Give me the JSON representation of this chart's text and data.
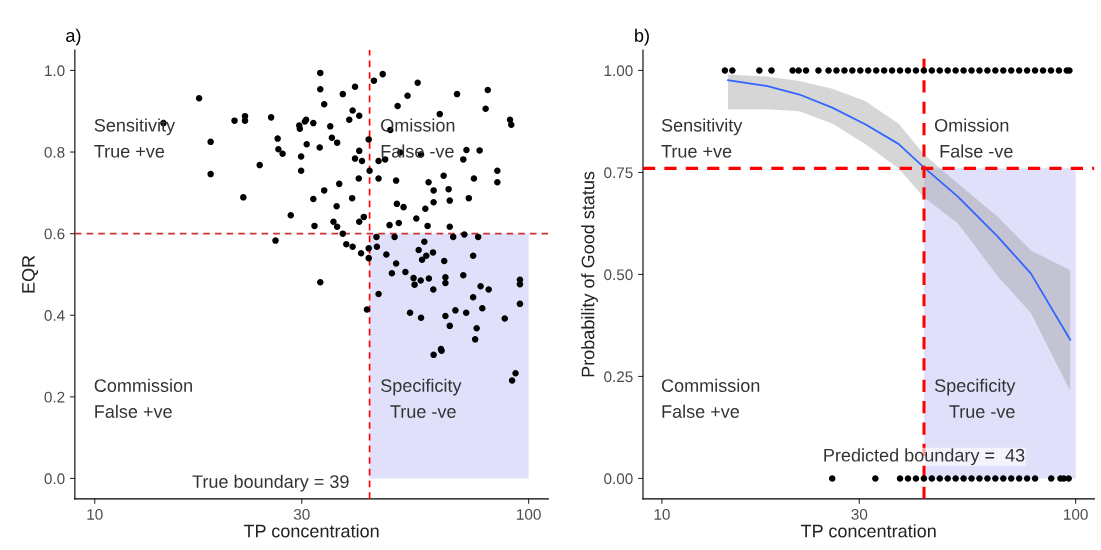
{
  "chart_data": [
    {
      "type": "scatter",
      "title": "a)",
      "xlabel": "TP concentration",
      "ylabel": "EQR",
      "log": "x",
      "marker": "circle",
      "xlim": [
        9,
        111
      ],
      "ylim": [
        -0.05,
        1.05
      ],
      "xticks": [
        10,
        30,
        100
      ],
      "yticks": [
        {
          "value": 0,
          "label": "0.0"
        },
        {
          "value": 0.2,
          "label": "0.2"
        },
        {
          "value": 0.4,
          "label": "0.4"
        },
        {
          "value": 0.6,
          "label": "0.6"
        },
        {
          "value": 0.8,
          "label": "0.8"
        },
        {
          "value": 1,
          "label": "1.0"
        }
      ],
      "ref_lines": [
        {
          "axis": "x",
          "value": 43,
          "label": null,
          "color": "#ff0000",
          "line_style": "dashed"
        },
        {
          "axis": "y",
          "value": 0.6,
          "label": null,
          "color": "#cc3333",
          "line_style": "dashed"
        }
      ],
      "bands": [
        {
          "axis": "x",
          "from": 43,
          "to": 100,
          "color": "#e0e0fa"
        }
      ],
      "annotations": [
        "Sensitivity\nTrue +ve",
        "Omission\nFalse -ve",
        "Commission\nFalse +ve",
        "Specificity\n  True -ve",
        "True boundary = 39"
      ],
      "series": [
        {
          "color": "#000000",
          "x": [
            14.4,
            17.4,
            18.5,
            18.5,
            21.0,
            22.2,
            22.2,
            22.0,
            24.0,
            25.5,
            26.4,
            26.5,
            27.1,
            26.1,
            28.3,
            29.6,
            29.7,
            30.7,
            30.8,
            29.9,
            29.9,
            33.1,
            33.1,
            33.8,
            37.3,
            39.8,
            39.3,
            40.7,
            38.6,
            44.0,
            46.1,
            55.5,
            52.6,
            49.9,
            62.4,
            68.4,
            80.5,
            79.6,
            90.6,
            91.2,
            30.5,
            31.9,
            34.9,
            35.2,
            36.2,
            33.0,
            42.8,
            40.7,
            39.8,
            41.3,
            48.0,
            50.6,
            56.5,
            45.1,
            46.7,
            43.0,
            45.1,
            49.5,
            40.6,
            36.6,
            71.9,
            77.1,
            70.7,
            84.7,
            84.7,
            74.8,
            63.7,
            58.8,
            60.4,
            65.4,
            65.8,
            72.8,
            60.4,
            57.8,
            49.7,
            51.5,
            55.1,
            39.2,
            36.1,
            33.8,
            31.9,
            41.7,
            40.7,
            35.5,
            32.1,
            36.2,
            37.3,
            47.8,
            50.2,
            58.5,
            65.8,
            67.0,
            71.1,
            76.5,
            44.6,
            49.1,
            38.0,
            39.3,
            41.1,
            42.8,
            42.8,
            44.7,
            47.0,
            55.8,
            57.5,
            56.8,
            58.1,
            60.2,
            63.9,
            74.5,
            49.5,
            48.4,
            52.0,
            54.3,
            54.6,
            56.4,
            58.9,
            60.3,
            64.3,
            64.3,
            70.7,
            77.5,
            80.9,
            74.5,
            95.5,
            95.5,
            95.5,
            78.2,
            88.1,
            45.1,
            33.1,
            42.4,
            53.3,
            56.5,
            64.3,
            67.8,
            71.8,
            65.8,
            75.9,
            75.3,
            62.8,
            60.4,
            63.0,
            91.6,
            93.3
          ],
          "values": [
            0.871,
            0.932,
            0.825,
            0.746,
            0.877,
            0.888,
            0.877,
            0.689,
            0.768,
            0.885,
            0.833,
            0.807,
            0.796,
            0.583,
            0.645,
            0.865,
            0.857,
            0.879,
            0.819,
            0.789,
            0.754,
            0.994,
            0.954,
            0.917,
            0.942,
            0.96,
            0.902,
            0.889,
            0.879,
            0.975,
            0.991,
            0.97,
            0.938,
            0.913,
            0.893,
            0.942,
            0.952,
            0.906,
            0.879,
            0.867,
            0.875,
            0.871,
            0.863,
            0.835,
            0.823,
            0.811,
            0.831,
            0.803,
            0.784,
            0.778,
            0.854,
            0.799,
            0.794,
            0.778,
            0.782,
            0.754,
            0.735,
            0.73,
            0.735,
            0.722,
            0.805,
            0.804,
            0.782,
            0.754,
            0.726,
            0.735,
            0.742,
            0.726,
            0.706,
            0.709,
            0.681,
            0.687,
            0.677,
            0.661,
            0.673,
            0.665,
            0.637,
            0.687,
            0.667,
            0.706,
            0.685,
            0.641,
            0.629,
            0.629,
            0.619,
            0.617,
            0.6,
            0.621,
            0.626,
            0.619,
            0.617,
            0.592,
            0.598,
            0.592,
            0.592,
            0.592,
            0.574,
            0.568,
            0.552,
            0.564,
            0.54,
            0.568,
            0.549,
            0.56,
            0.58,
            0.536,
            0.546,
            0.554,
            0.533,
            0.546,
            0.527,
            0.503,
            0.506,
            0.491,
            0.475,
            0.485,
            0.49,
            0.463,
            0.493,
            0.479,
            0.498,
            0.471,
            0.463,
            0.444,
            0.487,
            0.476,
            0.428,
            0.417,
            0.392,
            0.452,
            0.481,
            0.414,
            0.406,
            0.394,
            0.398,
            0.412,
            0.406,
            0.374,
            0.368,
            0.341,
            0.317,
            0.303,
            0.313,
            0.24,
            0.258
          ]
        }
      ]
    },
    {
      "type": "scatter",
      "title": "b)",
      "xlabel": "TP concentration",
      "ylabel": "Probability of Good status",
      "log": "x",
      "marker": "circle",
      "xlim": [
        9,
        111
      ],
      "ylim": [
        -0.05,
        1.05
      ],
      "xticks": [
        10,
        30,
        100
      ],
      "yticks": [
        {
          "value": 0,
          "label": "0.00"
        },
        {
          "value": 0.25,
          "label": "0.25"
        },
        {
          "value": 0.5,
          "label": "0.50"
        },
        {
          "value": 0.75,
          "label": "0.75"
        },
        {
          "value": 1,
          "label": "1.00"
        }
      ],
      "ref_lines": [
        {
          "axis": "x",
          "value": 43,
          "label": "Predicted boundary =  43",
          "color": "#ff0000",
          "line_style": "dashed"
        },
        {
          "axis": "y",
          "value": 0.76,
          "label": null,
          "color": "#ff0000",
          "line_style": "dashed"
        }
      ],
      "bands": [
        {
          "axis": "x",
          "from": 43,
          "to": 100,
          "color": "#e0e0fa"
        }
      ],
      "annotations": [
        "Sensitivity\nTrue +ve",
        "Omission\n False -ve",
        "Commission\nFalse +ve",
        "Specificity\n   True -ve"
      ],
      "series": [
        {
          "type": "line",
          "color": "#3366ff",
          "marker": "none",
          "x": [
            14.45,
            17.9,
            21.5,
            25.8,
            31.0,
            37.3,
            42.9,
            52.0,
            64.9,
            78.0,
            97.0
          ],
          "values": [
            0.976,
            0.962,
            0.941,
            0.909,
            0.868,
            0.82,
            0.763,
            0.69,
            0.592,
            0.502,
            0.34
          ],
          "lower": [
            0.905,
            0.905,
            0.9,
            0.87,
            0.82,
            0.76,
            0.69,
            0.624,
            0.495,
            0.405,
            0.215
          ],
          "upper": [
            0.99,
            0.985,
            0.974,
            0.955,
            0.925,
            0.87,
            0.795,
            0.722,
            0.641,
            0.559,
            0.51
          ]
        },
        {
          "color": "#000000",
          "x": [
            14.2,
            14.8,
            17.2,
            18.4,
            20.7,
            21.4,
            22.3,
            23.9,
            25.28,
            26.42,
            27.62,
            28.86,
            30.17,
            31.53,
            32.96,
            34.45,
            36.0,
            37.63,
            39.33,
            41.11,
            42.97,
            44.91,
            46.94,
            49.06,
            51.28,
            53.6,
            56.02,
            58.55,
            61.2,
            63.97,
            66.86,
            69.88,
            73.04,
            76.34,
            79.79,
            83.4,
            87.17,
            91.11,
            95.2,
            96.6
          ],
          "values": [
            1,
            1,
            1,
            1,
            1,
            1,
            1,
            1,
            1,
            1,
            1,
            1,
            1,
            1,
            1,
            1,
            1,
            1,
            1,
            1,
            1,
            1,
            1,
            1,
            1,
            1,
            1,
            1,
            1,
            1,
            1,
            1,
            1,
            1,
            1,
            1,
            1,
            1,
            1,
            1
          ]
        },
        {
          "color": "#000000",
          "x": [
            25.8,
            32.8,
            37.63,
            39.33,
            41.11,
            42.97,
            44.91,
            46.94,
            49.06,
            51.28,
            53.6,
            56.02,
            58.55,
            61.2,
            63.97,
            66.86,
            69.88,
            73.04,
            76.34,
            79.79,
            87.3,
            91.9,
            93.6,
            96.2
          ],
          "values": [
            0,
            0,
            0,
            0,
            0,
            0,
            0,
            0,
            0,
            0,
            0,
            0,
            0,
            0,
            0,
            0,
            0,
            0,
            0,
            0,
            0,
            0,
            0,
            0
          ]
        }
      ]
    }
  ]
}
